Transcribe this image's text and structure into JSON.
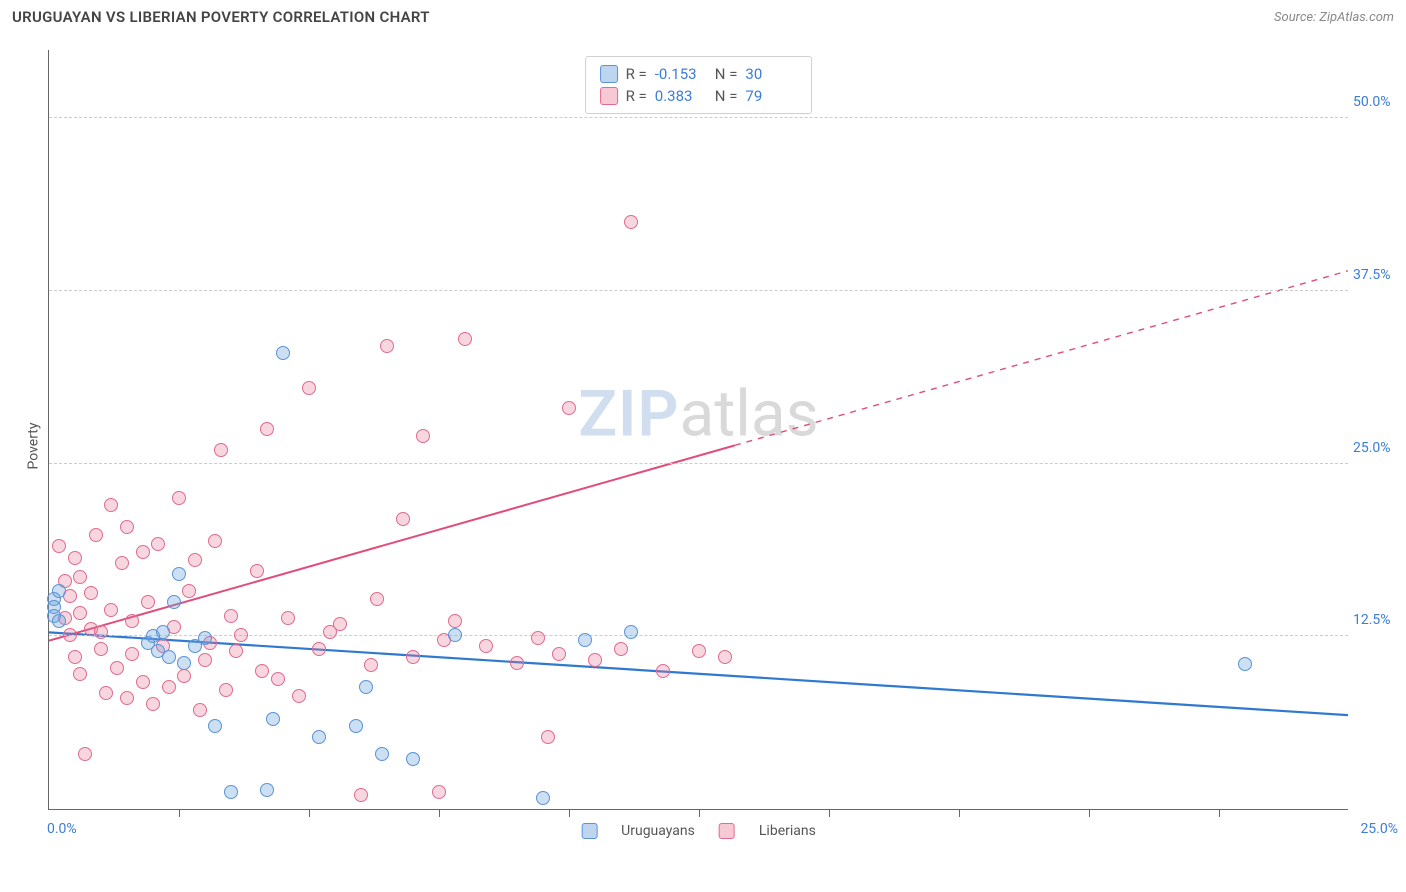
{
  "header": {
    "title": "URUGUAYAN VS LIBERIAN POVERTY CORRELATION CHART",
    "source_label": "Source: ZipAtlas.com"
  },
  "axes": {
    "ylabel": "Poverty",
    "xlim": [
      0,
      25
    ],
    "ylim": [
      0,
      55
    ],
    "ytick_labels": [
      "12.5%",
      "25.0%",
      "37.5%",
      "50.0%"
    ],
    "ytick_values": [
      12.5,
      25.0,
      37.5,
      50.0
    ],
    "xtick_values": [
      2.5,
      5.0,
      7.5,
      10.0,
      12.5,
      15.0,
      17.5,
      20.0,
      22.5
    ],
    "xorigin_label": "0.0%",
    "xmax_label": "25.0%",
    "grid_color": "#cccccc",
    "axis_color": "#666666",
    "tick_label_color": "#3b7dd8"
  },
  "watermark": {
    "zip": "ZIP",
    "atlas": "atlas"
  },
  "series": {
    "uruguayans": {
      "label": "Uruguayans",
      "color_fill": "rgba(108,162,220,0.35)",
      "color_stroke": "#5a93d6",
      "marker_radius_px": 7,
      "R": "-0.153",
      "N": "30",
      "trend": {
        "y_at_x0": 12.8,
        "y_at_xmax": 6.8,
        "stroke": "#2f79d0",
        "width": 2.2,
        "solid_until_x": 25
      },
      "points_xy": [
        [
          0.1,
          15.2
        ],
        [
          0.1,
          14.6
        ],
        [
          0.1,
          14.0
        ],
        [
          0.2,
          15.8
        ],
        [
          0.2,
          13.6
        ],
        [
          1.9,
          12.0
        ],
        [
          2.0,
          12.5
        ],
        [
          2.1,
          11.4
        ],
        [
          2.2,
          12.8
        ],
        [
          2.3,
          11.0
        ],
        [
          2.5,
          17.0
        ],
        [
          2.6,
          10.6
        ],
        [
          2.8,
          11.8
        ],
        [
          3.0,
          12.4
        ],
        [
          3.2,
          6.0
        ],
        [
          3.5,
          1.2
        ],
        [
          4.2,
          1.4
        ],
        [
          4.3,
          6.5
        ],
        [
          4.5,
          33.0
        ],
        [
          5.2,
          5.2
        ],
        [
          5.9,
          6.0
        ],
        [
          6.1,
          8.8
        ],
        [
          6.4,
          4.0
        ],
        [
          7.0,
          3.6
        ],
        [
          7.8,
          12.6
        ],
        [
          9.5,
          0.8
        ],
        [
          10.3,
          12.2
        ],
        [
          11.2,
          12.8
        ],
        [
          23.0,
          10.5
        ],
        [
          2.4,
          15.0
        ]
      ]
    },
    "liberians": {
      "label": "Liberians",
      "color_fill": "rgba(232,120,150,0.30)",
      "color_stroke": "#e06b8f",
      "marker_radius_px": 7,
      "R": "0.383",
      "N": "79",
      "trend": {
        "y_at_x0": 12.2,
        "y_at_xmax": 39.0,
        "stroke": "#e14d7b",
        "width": 2.0,
        "solid_until_x": 13.2
      },
      "points_xy": [
        [
          0.2,
          19.0
        ],
        [
          0.3,
          16.5
        ],
        [
          0.3,
          13.8
        ],
        [
          0.4,
          15.4
        ],
        [
          0.4,
          12.6
        ],
        [
          0.5,
          18.2
        ],
        [
          0.5,
          11.0
        ],
        [
          0.6,
          14.2
        ],
        [
          0.6,
          16.8
        ],
        [
          0.6,
          9.8
        ],
        [
          0.7,
          4.0
        ],
        [
          0.8,
          13.0
        ],
        [
          0.8,
          15.6
        ],
        [
          0.9,
          19.8
        ],
        [
          1.0,
          11.6
        ],
        [
          1.0,
          12.8
        ],
        [
          1.1,
          8.4
        ],
        [
          1.2,
          22.0
        ],
        [
          1.2,
          14.4
        ],
        [
          1.3,
          10.2
        ],
        [
          1.4,
          17.8
        ],
        [
          1.5,
          20.4
        ],
        [
          1.5,
          8.0
        ],
        [
          1.6,
          11.2
        ],
        [
          1.6,
          13.6
        ],
        [
          1.8,
          18.6
        ],
        [
          1.8,
          9.2
        ],
        [
          1.9,
          15.0
        ],
        [
          2.0,
          7.6
        ],
        [
          2.1,
          19.2
        ],
        [
          2.2,
          11.8
        ],
        [
          2.3,
          8.8
        ],
        [
          2.4,
          13.2
        ],
        [
          2.5,
          22.5
        ],
        [
          2.6,
          9.6
        ],
        [
          2.7,
          15.8
        ],
        [
          2.8,
          18.0
        ],
        [
          2.9,
          7.2
        ],
        [
          3.0,
          10.8
        ],
        [
          3.1,
          12.0
        ],
        [
          3.2,
          19.4
        ],
        [
          3.3,
          26.0
        ],
        [
          3.4,
          8.6
        ],
        [
          3.5,
          14.0
        ],
        [
          3.6,
          11.4
        ],
        [
          3.7,
          12.6
        ],
        [
          4.0,
          17.2
        ],
        [
          4.1,
          10.0
        ],
        [
          4.2,
          27.5
        ],
        [
          4.4,
          9.4
        ],
        [
          4.6,
          13.8
        ],
        [
          4.8,
          8.2
        ],
        [
          5.0,
          30.5
        ],
        [
          5.2,
          11.6
        ],
        [
          5.4,
          12.8
        ],
        [
          5.6,
          13.4
        ],
        [
          6.0,
          1.0
        ],
        [
          6.2,
          10.4
        ],
        [
          6.5,
          33.5
        ],
        [
          6.8,
          21.0
        ],
        [
          7.0,
          11.0
        ],
        [
          7.2,
          27.0
        ],
        [
          7.5,
          1.2
        ],
        [
          7.6,
          12.2
        ],
        [
          7.8,
          13.6
        ],
        [
          8.0,
          34.0
        ],
        [
          8.4,
          11.8
        ],
        [
          9.0,
          10.6
        ],
        [
          9.4,
          12.4
        ],
        [
          9.8,
          11.2
        ],
        [
          10.0,
          29.0
        ],
        [
          10.5,
          10.8
        ],
        [
          11.0,
          11.6
        ],
        [
          11.2,
          42.5
        ],
        [
          11.8,
          10.0
        ],
        [
          12.5,
          11.4
        ],
        [
          13.0,
          11.0
        ],
        [
          9.6,
          5.2
        ],
        [
          6.3,
          15.2
        ]
      ]
    }
  },
  "stat_legend": {
    "R_label": "R =",
    "N_label": "N ="
  }
}
